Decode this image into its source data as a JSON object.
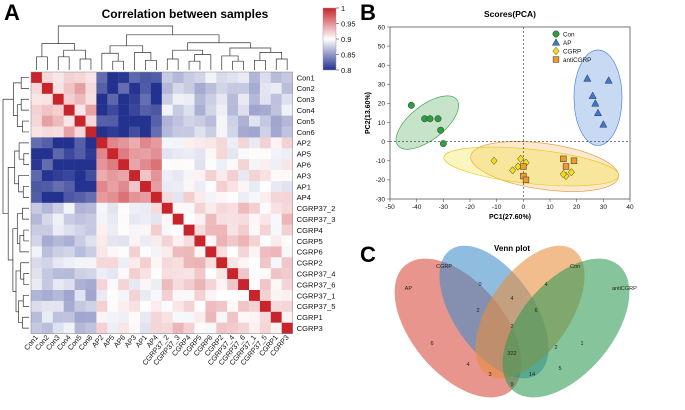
{
  "panels": {
    "A": {
      "letter": "A",
      "title": "Correlation between samples"
    },
    "B": {
      "letter": "B",
      "title": "Scores(PCA)"
    },
    "C": {
      "letter": "C",
      "title": "Venn plot"
    }
  },
  "chart_data": [
    {
      "type": "heatmap",
      "title": "Correlation between samples",
      "samples": [
        "Con1",
        "Con2",
        "Con3",
        "Con4",
        "Con5",
        "Con6",
        "AP2",
        "AP5",
        "AP6",
        "AP3",
        "AP1",
        "AP4",
        "CGRP37_2",
        "CGRP37_3",
        "CGRP4",
        "CGRP5",
        "CGRP6",
        "CGRP2",
        "CGRP37_4",
        "CGRP37_6",
        "CGRP37_1",
        "CGRP37_5",
        "CGRP1",
        "CGRP3"
      ],
      "colorbar": {
        "min": 0.8,
        "max": 1,
        "ticks": [
          "1",
          "0.95",
          "0.9",
          "0.85",
          "0.8"
        ],
        "low_color": "#23318f",
        "mid_color": "#ffffff",
        "high_color": "#c8242c"
      },
      "groups": {
        "Con": [
          0,
          5
        ],
        "AP": [
          6,
          11
        ],
        "CGRP": [
          12,
          23
        ]
      },
      "group_values": {
        "within_con": 0.93,
        "within_ap": 0.945,
        "within_cgrp": 0.915,
        "con_vs_ap": 0.81,
        "con_vs_cgrp": 0.875,
        "ap_vs_cgrp": 0.905
      }
    },
    {
      "type": "scatter",
      "title": "Scores(PCA)",
      "xlabel": "PC1(27.60%)",
      "ylabel": "PC2(13.60%)",
      "xlim": [
        -50,
        40
      ],
      "ylim": [
        -30,
        60
      ],
      "xticks": [
        -50,
        -40,
        -30,
        -20,
        -10,
        0,
        10,
        20,
        30,
        40
      ],
      "yticks": [
        -30,
        -20,
        -10,
        0,
        10,
        20,
        30,
        40,
        50,
        60
      ],
      "legend_position": "top-right",
      "series": [
        {
          "name": "Con",
          "color": "#2e9e3e",
          "marker": "circle",
          "x": [
            -42,
            -37,
            -35,
            -32,
            -31,
            -30
          ],
          "y": [
            19,
            12,
            12,
            12,
            6,
            -1
          ]
        },
        {
          "name": "AP",
          "color": "#3a78d8",
          "marker": "triangle",
          "x": [
            24,
            26,
            27,
            28,
            30,
            32
          ],
          "y": [
            33,
            24,
            20,
            15,
            9,
            32
          ]
        },
        {
          "name": "CGRP",
          "color": "#f2e01a",
          "marker": "diamond",
          "x": [
            -11,
            -4,
            -2,
            -1,
            1,
            16,
            18,
            15
          ],
          "y": [
            -10,
            -15,
            -13,
            -9,
            -11,
            -18,
            -16,
            -17
          ]
        },
        {
          "name": "antiCGRP",
          "color": "#f09a2a",
          "marker": "square",
          "x": [
            0,
            1,
            0,
            15,
            16,
            19
          ],
          "y": [
            -18,
            -20,
            -13,
            -9,
            -13,
            -10
          ]
        }
      ]
    },
    {
      "type": "venn",
      "title": "Venn plot",
      "sets": [
        "AP",
        "CGRP",
        "Con",
        "antiCGRP"
      ],
      "set_colors": [
        "#d6493a",
        "#3e8dc9",
        "#e88d3a",
        "#2f9a55"
      ],
      "values": [
        "6",
        "0",
        "4",
        "2",
        "4",
        "6",
        "2",
        "322",
        "14",
        "3",
        "1",
        "5",
        "9",
        "4",
        "2"
      ]
    }
  ]
}
